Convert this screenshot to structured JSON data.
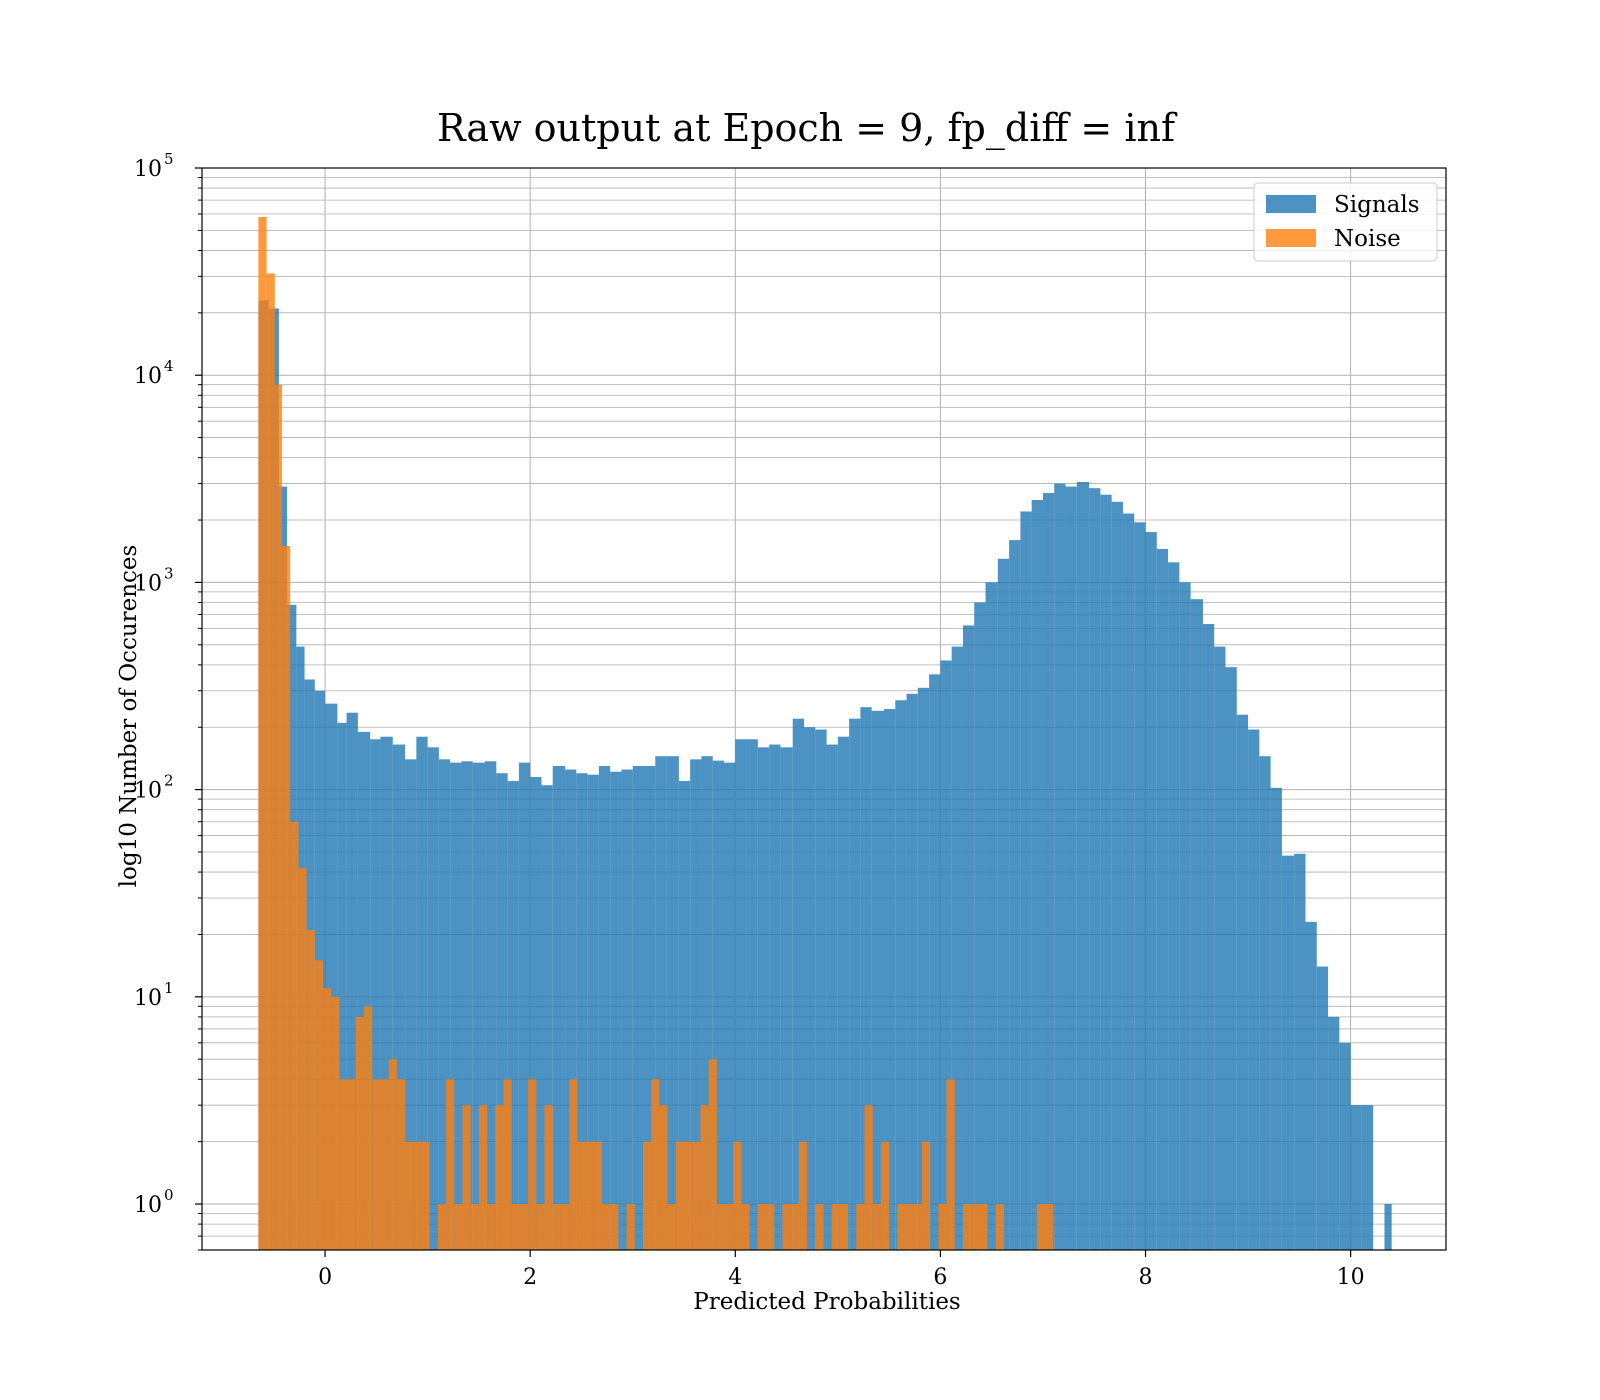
{
  "chart_data": {
    "type": "bar",
    "title": "Raw output at Epoch = 9, fp_diff = inf",
    "xlabel": "Predicted Probabilities",
    "ylabel": "log10 Number of Occurences",
    "x_scale": "linear",
    "y_scale": "log",
    "xlim": [
      -1.2,
      10.93
    ],
    "ylim": [
      0.6,
      100000
    ],
    "xticks": [
      {
        "value": 0,
        "label": "0"
      },
      {
        "value": 2,
        "label": "2"
      },
      {
        "value": 4,
        "label": "4"
      },
      {
        "value": 6,
        "label": "6"
      },
      {
        "value": 8,
        "label": "8"
      },
      {
        "value": 10,
        "label": "10"
      }
    ],
    "yticks": [
      {
        "value": 1,
        "base": "10",
        "exp": "0"
      },
      {
        "value": 10,
        "base": "10",
        "exp": "1"
      },
      {
        "value": 100,
        "base": "10",
        "exp": "2"
      },
      {
        "value": 1000,
        "base": "10",
        "exp": "3"
      },
      {
        "value": 10000,
        "base": "10",
        "exp": "4"
      },
      {
        "value": 100000,
        "base": "10",
        "exp": "5"
      }
    ],
    "grid": true,
    "legend_position": "top-right",
    "series": [
      {
        "name": "Signals",
        "color": "#1f77b4",
        "opacity": 0.8,
        "bins": [
          [
            -0.65,
            -0.55,
            23000
          ],
          [
            -0.55,
            -0.45,
            21000
          ],
          [
            -0.45,
            -0.37,
            2900
          ],
          [
            -0.37,
            -0.28,
            780
          ],
          [
            -0.28,
            -0.2,
            490
          ],
          [
            -0.2,
            -0.1,
            340
          ],
          [
            -0.1,
            0.0,
            300
          ],
          [
            0.0,
            0.12,
            260
          ],
          [
            0.12,
            0.21,
            210
          ],
          [
            0.21,
            0.32,
            235
          ],
          [
            0.32,
            0.44,
            190
          ],
          [
            0.44,
            0.54,
            175
          ],
          [
            0.54,
            0.66,
            180
          ],
          [
            0.66,
            0.78,
            165
          ],
          [
            0.78,
            0.89,
            140
          ],
          [
            0.89,
            1.0,
            180
          ],
          [
            1.0,
            1.11,
            160
          ],
          [
            1.11,
            1.22,
            140
          ],
          [
            1.22,
            1.33,
            135
          ],
          [
            1.33,
            1.44,
            137
          ],
          [
            1.44,
            1.56,
            135
          ],
          [
            1.56,
            1.67,
            137
          ],
          [
            1.67,
            1.78,
            120
          ],
          [
            1.78,
            1.89,
            110
          ],
          [
            1.89,
            2.0,
            135
          ],
          [
            2.0,
            2.11,
            115
          ],
          [
            2.11,
            2.22,
            105
          ],
          [
            2.22,
            2.34,
            130
          ],
          [
            2.34,
            2.45,
            125
          ],
          [
            2.45,
            2.56,
            120
          ],
          [
            2.56,
            2.67,
            118
          ],
          [
            2.67,
            2.78,
            130
          ],
          [
            2.78,
            2.89,
            122
          ],
          [
            2.89,
            3.0,
            125
          ],
          [
            3.0,
            3.11,
            130
          ],
          [
            3.11,
            3.22,
            130
          ],
          [
            3.22,
            3.33,
            145
          ],
          [
            3.33,
            3.45,
            145
          ],
          [
            3.45,
            3.56,
            110
          ],
          [
            3.56,
            3.67,
            140
          ],
          [
            3.67,
            3.78,
            145
          ],
          [
            3.78,
            3.89,
            138
          ],
          [
            3.89,
            4.0,
            135
          ],
          [
            4.0,
            4.11,
            175
          ],
          [
            4.11,
            4.22,
            175
          ],
          [
            4.22,
            4.33,
            160
          ],
          [
            4.33,
            4.44,
            165
          ],
          [
            4.44,
            4.56,
            160
          ],
          [
            4.56,
            4.67,
            220
          ],
          [
            4.67,
            4.78,
            200
          ],
          [
            4.78,
            4.89,
            195
          ],
          [
            4.89,
            5.0,
            165
          ],
          [
            5.0,
            5.11,
            180
          ],
          [
            5.11,
            5.22,
            220
          ],
          [
            5.22,
            5.33,
            250
          ],
          [
            5.33,
            5.45,
            240
          ],
          [
            5.45,
            5.56,
            245
          ],
          [
            5.56,
            5.67,
            270
          ],
          [
            5.67,
            5.78,
            290
          ],
          [
            5.78,
            5.89,
            310
          ],
          [
            5.89,
            6.0,
            360
          ],
          [
            6.0,
            6.11,
            420
          ],
          [
            6.11,
            6.22,
            490
          ],
          [
            6.22,
            6.33,
            620
          ],
          [
            6.33,
            6.44,
            800
          ],
          [
            6.44,
            6.56,
            1000
          ],
          [
            6.56,
            6.67,
            1300
          ],
          [
            6.67,
            6.78,
            1600
          ],
          [
            6.78,
            6.89,
            2200
          ],
          [
            6.89,
            7.0,
            2500
          ],
          [
            7.0,
            7.11,
            2700
          ],
          [
            7.11,
            7.22,
            3000
          ],
          [
            7.22,
            7.33,
            2900
          ],
          [
            7.33,
            7.45,
            3050
          ],
          [
            7.45,
            7.56,
            2850
          ],
          [
            7.56,
            7.67,
            2650
          ],
          [
            7.67,
            7.78,
            2450
          ],
          [
            7.78,
            7.89,
            2150
          ],
          [
            7.89,
            8.0,
            1950
          ],
          [
            8.0,
            8.11,
            1750
          ],
          [
            8.11,
            8.22,
            1450
          ],
          [
            8.22,
            8.33,
            1250
          ],
          [
            8.33,
            8.44,
            1000
          ],
          [
            8.44,
            8.56,
            830
          ],
          [
            8.56,
            8.67,
            630
          ],
          [
            8.67,
            8.78,
            490
          ],
          [
            8.78,
            8.89,
            390
          ],
          [
            8.89,
            9.0,
            230
          ],
          [
            9.0,
            9.11,
            195
          ],
          [
            9.11,
            9.22,
            145
          ],
          [
            9.22,
            9.33,
            102
          ],
          [
            9.33,
            9.45,
            48
          ],
          [
            9.45,
            9.56,
            49
          ],
          [
            9.56,
            9.67,
            23
          ],
          [
            9.67,
            9.78,
            14
          ],
          [
            9.78,
            9.89,
            8
          ],
          [
            9.89,
            10.0,
            6
          ],
          [
            10.0,
            10.11,
            3
          ],
          [
            10.11,
            10.22,
            3
          ],
          [
            10.22,
            10.33,
            0
          ],
          [
            10.33,
            10.4,
            1
          ]
        ]
      },
      {
        "name": "Noise",
        "color": "#ff7f0e",
        "opacity": 0.8,
        "bins": [
          [
            -0.65,
            -0.57,
            58000
          ],
          [
            -0.57,
            -0.49,
            31000
          ],
          [
            -0.49,
            -0.42,
            9000
          ],
          [
            -0.42,
            -0.34,
            1500
          ],
          [
            -0.34,
            -0.26,
            70
          ],
          [
            -0.26,
            -0.18,
            42
          ],
          [
            -0.18,
            -0.1,
            21
          ],
          [
            -0.1,
            -0.02,
            15
          ],
          [
            -0.02,
            0.06,
            11
          ],
          [
            0.06,
            0.14,
            10
          ],
          [
            0.14,
            0.22,
            4
          ],
          [
            0.22,
            0.3,
            4
          ],
          [
            0.3,
            0.38,
            8
          ],
          [
            0.38,
            0.46,
            9
          ],
          [
            0.46,
            0.54,
            4
          ],
          [
            0.54,
            0.62,
            4
          ],
          [
            0.62,
            0.7,
            5
          ],
          [
            0.7,
            0.78,
            4
          ],
          [
            0.78,
            0.86,
            2
          ],
          [
            0.86,
            0.94,
            2
          ],
          [
            0.94,
            1.02,
            2
          ],
          [
            1.02,
            1.1,
            0
          ],
          [
            1.1,
            1.18,
            1
          ],
          [
            1.18,
            1.26,
            4
          ],
          [
            1.26,
            1.34,
            1
          ],
          [
            1.34,
            1.42,
            3
          ],
          [
            1.42,
            1.5,
            1
          ],
          [
            1.5,
            1.58,
            3
          ],
          [
            1.58,
            1.66,
            1
          ],
          [
            1.66,
            1.74,
            3
          ],
          [
            1.74,
            1.82,
            4
          ],
          [
            1.82,
            1.9,
            1
          ],
          [
            1.9,
            1.98,
            1
          ],
          [
            1.98,
            2.06,
            4
          ],
          [
            2.06,
            2.14,
            1
          ],
          [
            2.14,
            2.22,
            3
          ],
          [
            2.22,
            2.3,
            1
          ],
          [
            2.3,
            2.38,
            1
          ],
          [
            2.38,
            2.46,
            4
          ],
          [
            2.46,
            2.54,
            2
          ],
          [
            2.54,
            2.62,
            2
          ],
          [
            2.62,
            2.7,
            2
          ],
          [
            2.7,
            2.78,
            1
          ],
          [
            2.78,
            2.86,
            1
          ],
          [
            2.86,
            2.94,
            0
          ],
          [
            2.94,
            3.02,
            1
          ],
          [
            3.02,
            3.1,
            0
          ],
          [
            3.1,
            3.18,
            2
          ],
          [
            3.18,
            3.26,
            4
          ],
          [
            3.26,
            3.34,
            3
          ],
          [
            3.34,
            3.42,
            1
          ],
          [
            3.42,
            3.5,
            2
          ],
          [
            3.5,
            3.58,
            2
          ],
          [
            3.58,
            3.66,
            2
          ],
          [
            3.66,
            3.74,
            3
          ],
          [
            3.74,
            3.82,
            5
          ],
          [
            3.82,
            3.9,
            1
          ],
          [
            3.9,
            3.98,
            1
          ],
          [
            3.98,
            4.06,
            2
          ],
          [
            4.06,
            4.14,
            1
          ],
          [
            4.14,
            4.22,
            0
          ],
          [
            4.22,
            4.3,
            1
          ],
          [
            4.3,
            4.38,
            1
          ],
          [
            4.38,
            4.46,
            0
          ],
          [
            4.46,
            4.54,
            1
          ],
          [
            4.54,
            4.62,
            1
          ],
          [
            4.62,
            4.7,
            2
          ],
          [
            4.7,
            4.78,
            0
          ],
          [
            4.78,
            4.86,
            1
          ],
          [
            4.86,
            4.94,
            0
          ],
          [
            4.94,
            5.02,
            1
          ],
          [
            5.02,
            5.1,
            1
          ],
          [
            5.1,
            5.18,
            0
          ],
          [
            5.18,
            5.26,
            1
          ],
          [
            5.26,
            5.34,
            3
          ],
          [
            5.34,
            5.42,
            1
          ],
          [
            5.42,
            5.5,
            2
          ],
          [
            5.5,
            5.58,
            0
          ],
          [
            5.58,
            5.66,
            1
          ],
          [
            5.66,
            5.74,
            1
          ],
          [
            5.74,
            5.82,
            1
          ],
          [
            5.82,
            5.9,
            2
          ],
          [
            5.9,
            5.98,
            0
          ],
          [
            5.98,
            6.06,
            1
          ],
          [
            6.06,
            6.14,
            4
          ],
          [
            6.14,
            6.22,
            0
          ],
          [
            6.22,
            6.3,
            1
          ],
          [
            6.3,
            6.38,
            1
          ],
          [
            6.38,
            6.46,
            1
          ],
          [
            6.46,
            6.54,
            0
          ],
          [
            6.54,
            6.62,
            1
          ],
          [
            6.62,
            6.7,
            0
          ],
          [
            6.7,
            6.78,
            0
          ],
          [
            6.78,
            6.86,
            0
          ],
          [
            6.86,
            6.94,
            0
          ],
          [
            6.94,
            7.02,
            1
          ],
          [
            7.02,
            7.1,
            1
          ]
        ]
      }
    ]
  }
}
